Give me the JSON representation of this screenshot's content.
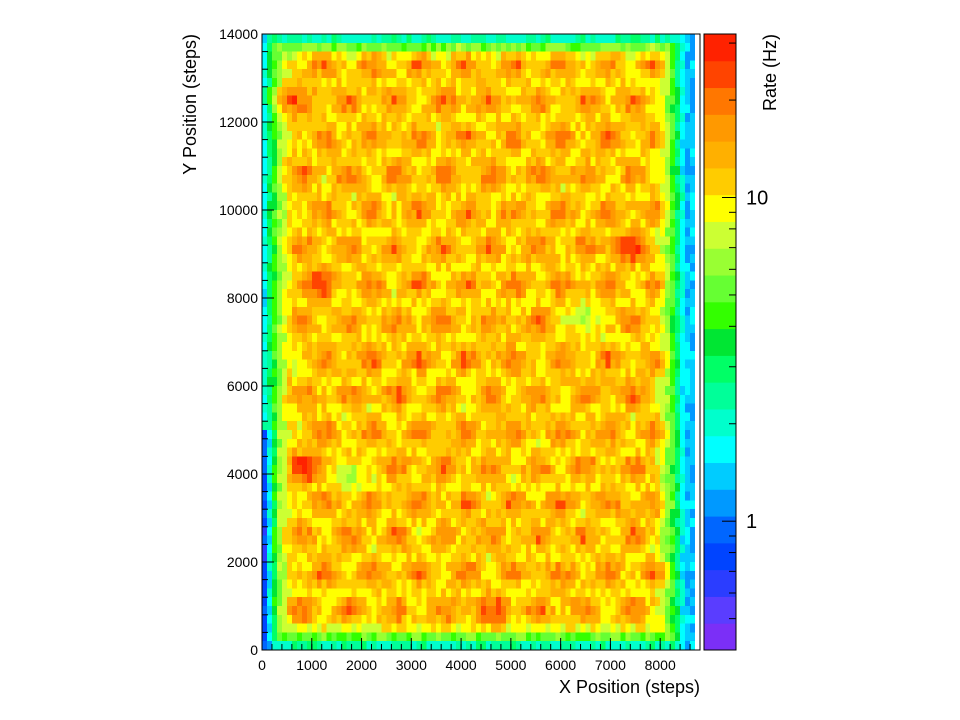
{
  "chart_data": {
    "type": "heatmap",
    "title": "",
    "xlabel": "X Position (steps)",
    "ylabel": "Y Position (steps)",
    "colorbar_label": "Rate (Hz)",
    "xlim": [
      0,
      8800
    ],
    "ylim": [
      0,
      14000
    ],
    "color_scale": "log",
    "zlim": [
      0.4,
      32
    ],
    "x_ticks": [
      0,
      1000,
      2000,
      3000,
      4000,
      5000,
      6000,
      7000,
      8000
    ],
    "x_tick_labels": [
      "0",
      "1000",
      "2000",
      "3000",
      "4000",
      "5000",
      "6000",
      "7000",
      "8000"
    ],
    "y_ticks": [
      0,
      2000,
      4000,
      6000,
      8000,
      10000,
      12000,
      14000
    ],
    "y_tick_labels": [
      "0",
      "2000",
      "4000",
      "6000",
      "8000",
      "10000",
      "12000",
      "14000"
    ],
    "colorbar_ticks": [
      1,
      10
    ],
    "colorbar_tick_labels": [
      "1",
      "10"
    ],
    "grid": false,
    "bin_size": [
      100,
      200
    ],
    "background_rate_hz": 10,
    "hex_spot_pattern": {
      "rows_y": [
        900,
        1750,
        2600,
        3350,
        4150,
        4950,
        5800,
        6600,
        7450,
        8300,
        9150,
        9950,
        10800,
        11650,
        12450,
        13300
      ],
      "even_row_x": [
        800,
        1750,
        2700,
        3650,
        4600,
        5550,
        6500,
        7450
      ],
      "odd_row_x": [
        1250,
        2200,
        3150,
        4100,
        5050,
        6000,
        6950,
        7900
      ],
      "spot_peak_rate_hz": 20
    },
    "notable_regions": [
      {
        "x": 900,
        "y": 4150,
        "rate_hz": 30,
        "label": "hot spot"
      },
      {
        "x": 1100,
        "y": 8350,
        "rate_hz": 28,
        "label": "hot spot"
      },
      {
        "x": 500,
        "y": 12500,
        "rate_hz": 25,
        "label": "hot spot"
      },
      {
        "x": 7350,
        "y": 9150,
        "rate_hz": 27,
        "label": "hot spot"
      },
      {
        "x": 4600,
        "y": 900,
        "rate_hz": 24,
        "label": "hot spot"
      },
      {
        "x": 1750,
        "y": 4050,
        "rate_hz": 6,
        "label": "cold spot"
      },
      {
        "x": 6450,
        "y": 7500,
        "rate_hz": 6,
        "label": "cold spot"
      }
    ],
    "edge_falloff": "rate drops to ~3–5 Hz (green/cyan) near detector boundary, ~0.5–1 Hz (blue) at bottom-left and corners"
  },
  "colors": {
    "palette": [
      "#7b2ff7",
      "#5a3dff",
      "#2b3dff",
      "#0044ff",
      "#0066ff",
      "#0099ff",
      "#00ccff",
      "#00ffff",
      "#00ffcc",
      "#00ff99",
      "#00ff66",
      "#00e633",
      "#33ff00",
      "#66ff33",
      "#99ff33",
      "#ccff33",
      "#ffff00",
      "#ffcc00",
      "#ffb000",
      "#ff9900",
      "#ff7700",
      "#ff4400",
      "#ff2200"
    ]
  }
}
